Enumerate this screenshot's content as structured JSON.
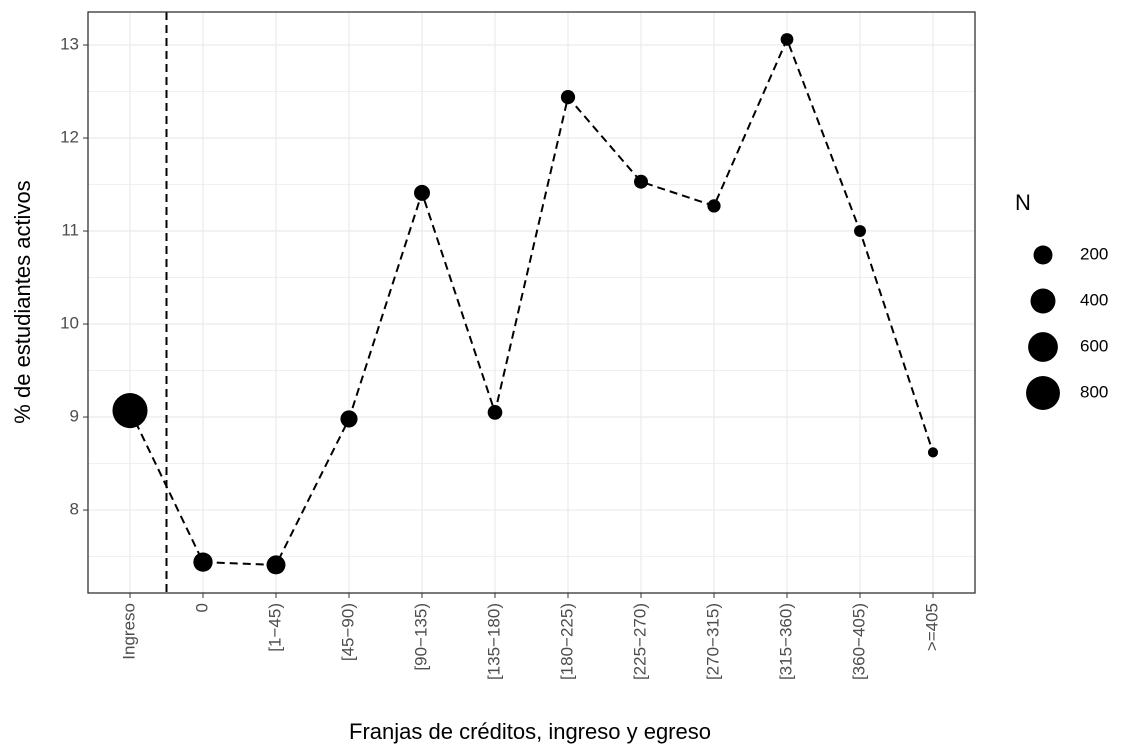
{
  "chart_data": {
    "type": "bubble_line",
    "x_label": "Franjas de créditos, ingreso y egreso",
    "y_label": "% de estudiantes activos",
    "categories": [
      "Ingreso",
      "0",
      "[1−45)",
      "[45−90)",
      "[90−135)",
      "[135−180)",
      "[180−225)",
      "[225−270)",
      "[270−315)",
      "[315−360)",
      "[360−405)",
      ">=405"
    ],
    "values": [
      9.07,
      7.44,
      7.41,
      8.98,
      11.41,
      9.05,
      12.44,
      11.53,
      11.27,
      13.06,
      11.0,
      8.62
    ],
    "sizes": [
      860,
      210,
      200,
      150,
      120,
      90,
      80,
      75,
      60,
      50,
      35,
      5
    ],
    "color": "#000000",
    "ylim": [
      7.108,
      13.355
    ],
    "yticks": [
      8,
      9,
      10,
      11,
      12,
      13
    ],
    "grid": true,
    "size_legend": {
      "title": "N",
      "values": [
        200,
        400,
        600,
        800
      ]
    }
  }
}
